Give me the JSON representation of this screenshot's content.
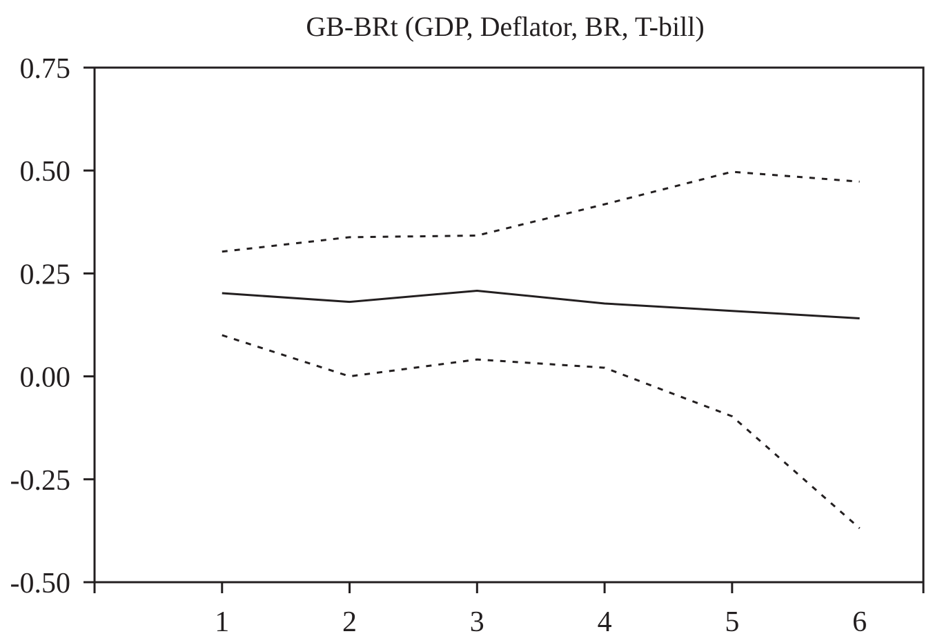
{
  "chart_data": {
    "type": "line",
    "title": "GB-BRt (GDP, Deflator, BR, T-bill)",
    "xlabel": "",
    "ylabel": "",
    "x": [
      1,
      2,
      3,
      4,
      5,
      6
    ],
    "x_tick_labels": [
      "1",
      "2",
      "3",
      "4",
      "5",
      "6"
    ],
    "y_tick_labels": [
      "0.75",
      "0.50",
      "0.25",
      "0.00",
      "-0.25",
      "-0.50"
    ],
    "y_ticks": [
      0.75,
      0.5,
      0.25,
      0.0,
      -0.25,
      -0.5
    ],
    "xlim": [
      0,
      6.5
    ],
    "ylim": [
      -0.5,
      0.75
    ],
    "grid": false,
    "series": [
      {
        "values": [
          0.303,
          0.338,
          0.342,
          0.418,
          0.497,
          0.473
        ],
        "style": "dotted"
      },
      {
        "values": [
          0.202,
          0.181,
          0.208,
          0.177,
          0.159,
          0.141
        ],
        "style": "solid"
      },
      {
        "values": [
          0.1,
          0.0,
          0.041,
          0.021,
          -0.097,
          -0.369
        ],
        "style": "dotted"
      }
    ],
    "colors": {
      "line": "#231f20",
      "background": "#ffffff"
    }
  }
}
